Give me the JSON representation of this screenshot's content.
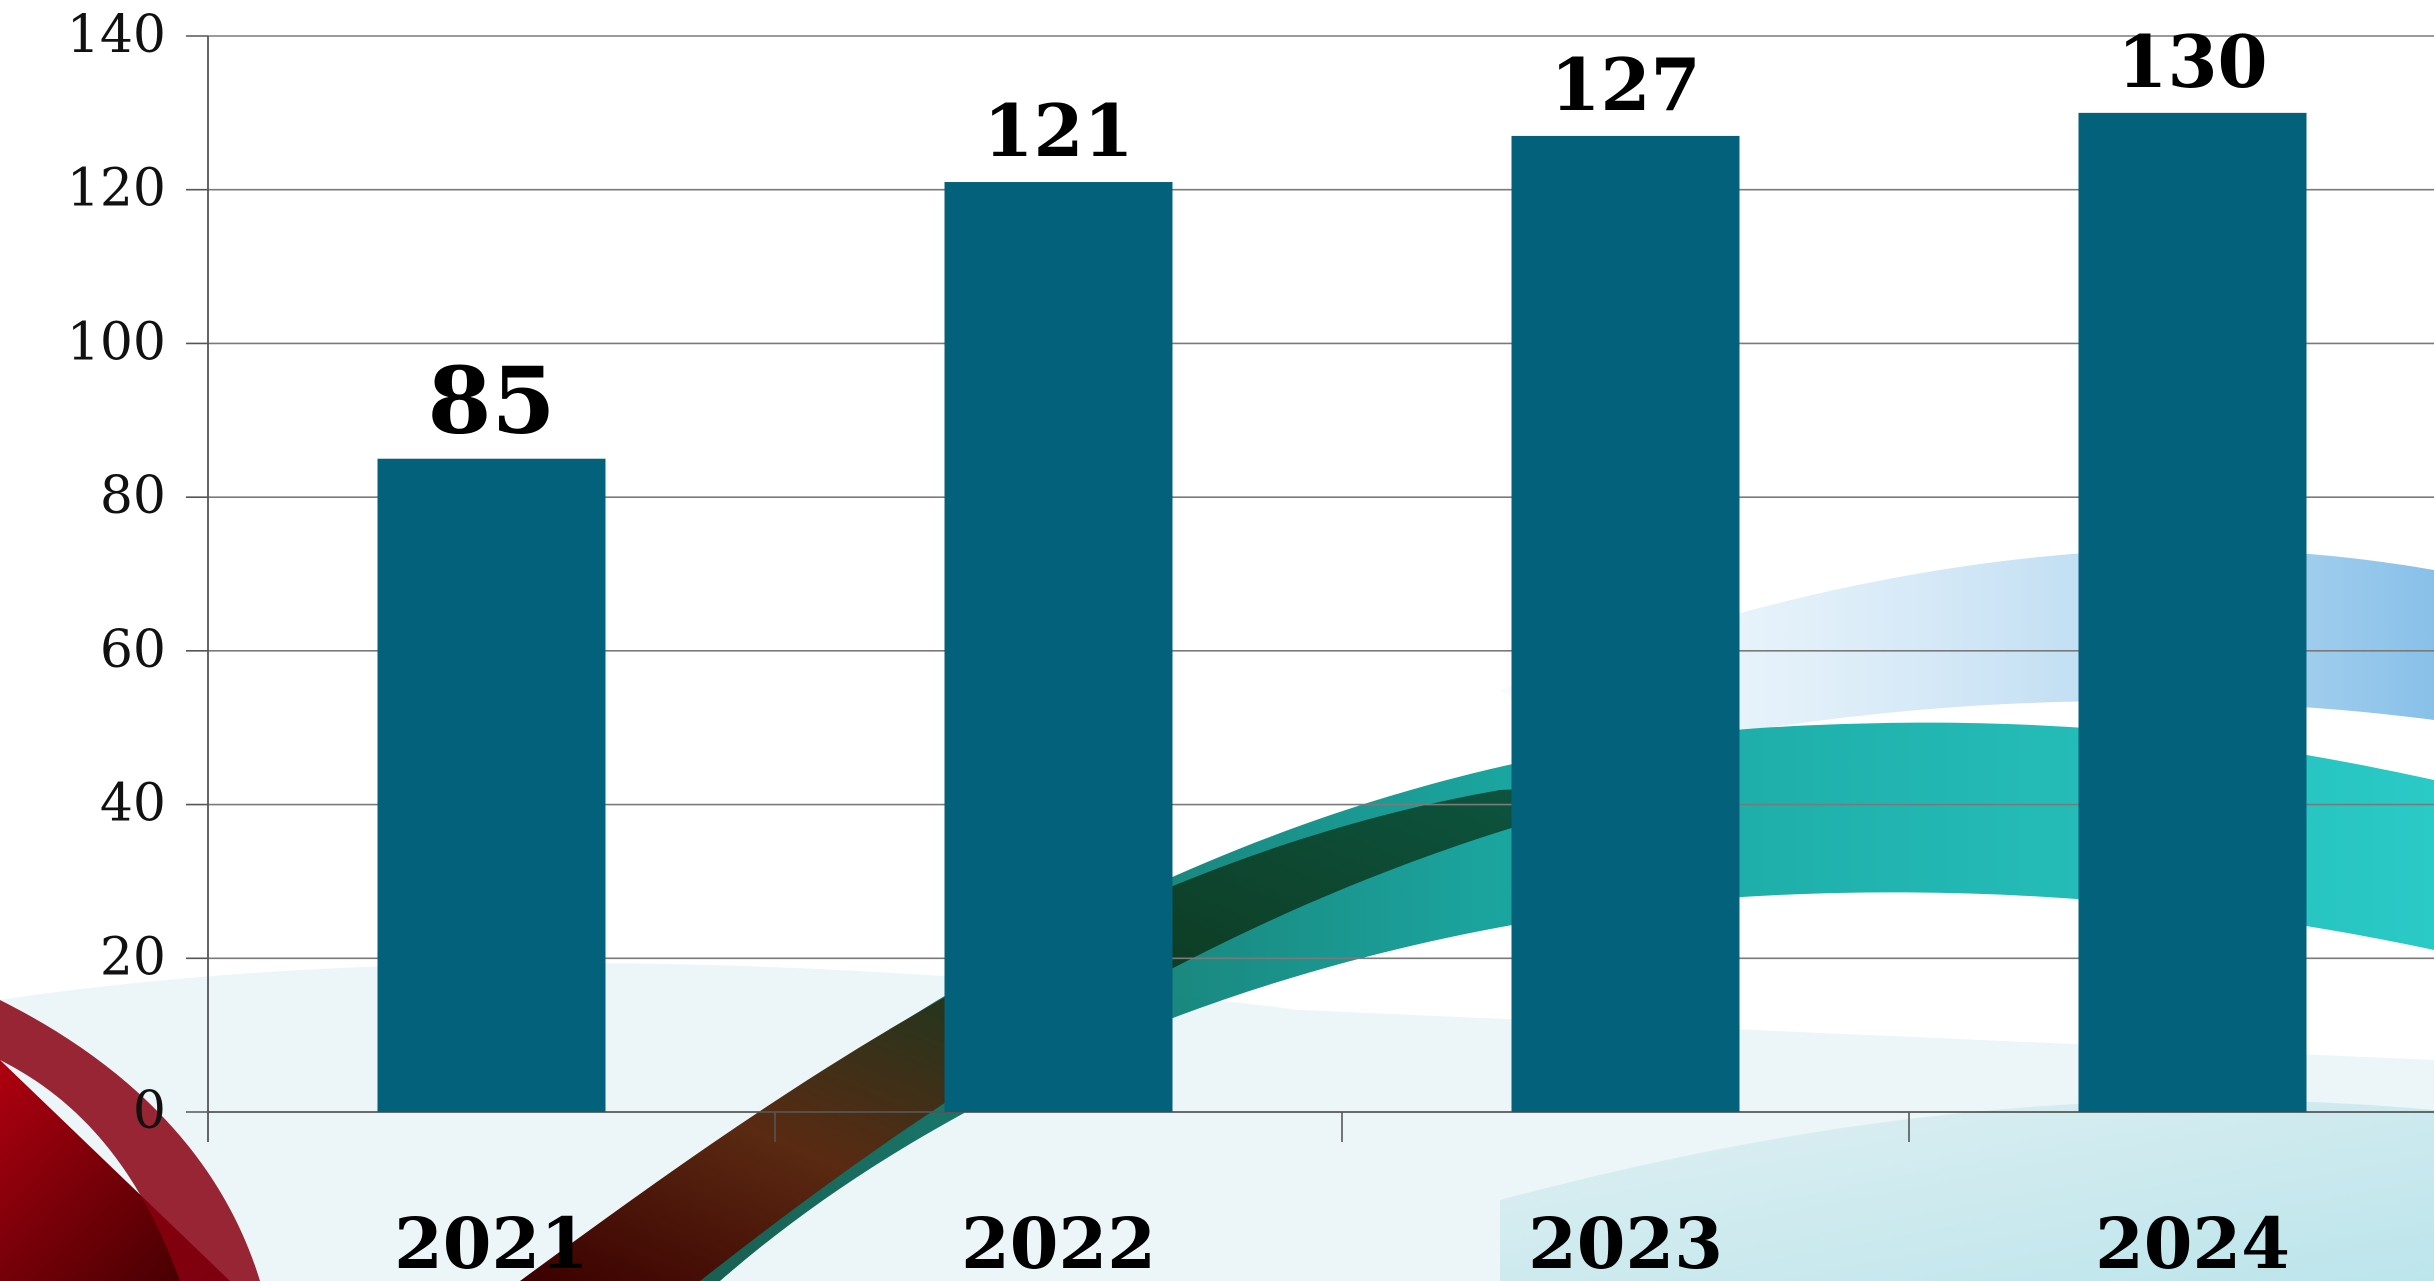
{
  "chart_data": {
    "type": "bar",
    "categories": [
      "2021",
      "2022",
      "2023",
      "2024"
    ],
    "values": [
      85,
      121,
      127,
      130
    ],
    "data_labels": [
      "85",
      "121",
      "127",
      "130"
    ],
    "ylim": [
      0,
      140
    ],
    "yticks": [
      "0",
      "20",
      "40",
      "60",
      "80",
      "100",
      "120",
      "140"
    ],
    "grid": true,
    "legend": "none",
    "bar_color": "#04617b",
    "grid_color": "#7a7a7a",
    "axis_color": "#555555",
    "background_decoration": "abstract-swoosh"
  }
}
